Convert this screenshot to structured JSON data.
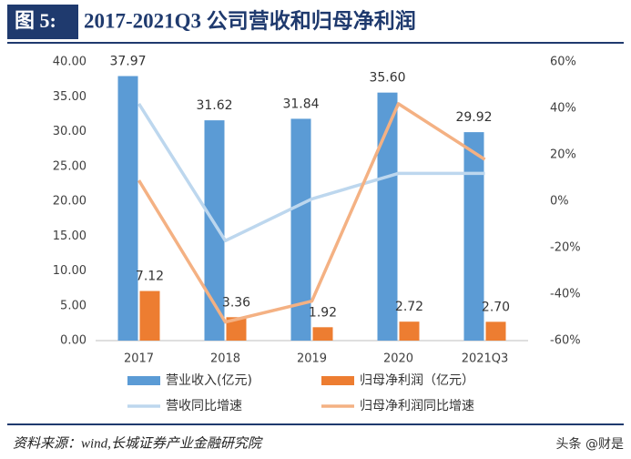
{
  "chart_data": {
    "type": "bar",
    "figure_label": "图 5:",
    "title": "2017-2021Q3 公司营收和归母净利润",
    "categories": [
      "2017",
      "2018",
      "2019",
      "2020",
      "2021Q3"
    ],
    "series": [
      {
        "name": "营业收入(亿元)",
        "type": "bar",
        "color": "#5b9bd5",
        "values": [
          37.97,
          31.62,
          31.84,
          35.6,
          29.92
        ],
        "value_labels": [
          "37.97",
          "31.62",
          "31.84",
          "35.60",
          "29.92"
        ]
      },
      {
        "name": "归母净利润（亿元）",
        "type": "bar",
        "color": "#ed7d31",
        "values": [
          7.12,
          3.36,
          1.92,
          2.72,
          2.7
        ],
        "value_labels": [
          "7.12",
          "3.36",
          "1.92",
          "2.72",
          "2.70"
        ]
      },
      {
        "name": "营收同比增速",
        "type": "line",
        "axis": "y2",
        "color": "#bdd7ee",
        "values": [
          42,
          -17,
          1,
          12,
          12
        ]
      },
      {
        "name": "归母净利润同比增速",
        "type": "line",
        "axis": "y2",
        "color": "#f4b183",
        "values": [
          9,
          -52,
          -43,
          42,
          18
        ]
      }
    ],
    "ylim": [
      0,
      40
    ],
    "yticks": [
      {
        "value": 0,
        "label": "0.00"
      },
      {
        "value": 5,
        "label": "5.00"
      },
      {
        "value": 10,
        "label": "10.00"
      },
      {
        "value": 15,
        "label": "15.00"
      },
      {
        "value": 20,
        "label": "20.00"
      },
      {
        "value": 25,
        "label": "25.00"
      },
      {
        "value": 30,
        "label": "30.00"
      },
      {
        "value": 35,
        "label": "35.00"
      },
      {
        "value": 40,
        "label": "40.00"
      }
    ],
    "y2lim": [
      -60,
      60
    ],
    "y2ticks": [
      {
        "value": -60,
        "label": "-60%"
      },
      {
        "value": -40,
        "label": "-40%"
      },
      {
        "value": -20,
        "label": "-20%"
      },
      {
        "value": 0,
        "label": "0%"
      },
      {
        "value": 20,
        "label": "20%"
      },
      {
        "value": 40,
        "label": "40%"
      },
      {
        "value": 60,
        "label": "60%"
      }
    ],
    "grid": false,
    "source": "资料来源：wind,长城证券产业金融研究院",
    "watermark": "头条 @财是"
  }
}
